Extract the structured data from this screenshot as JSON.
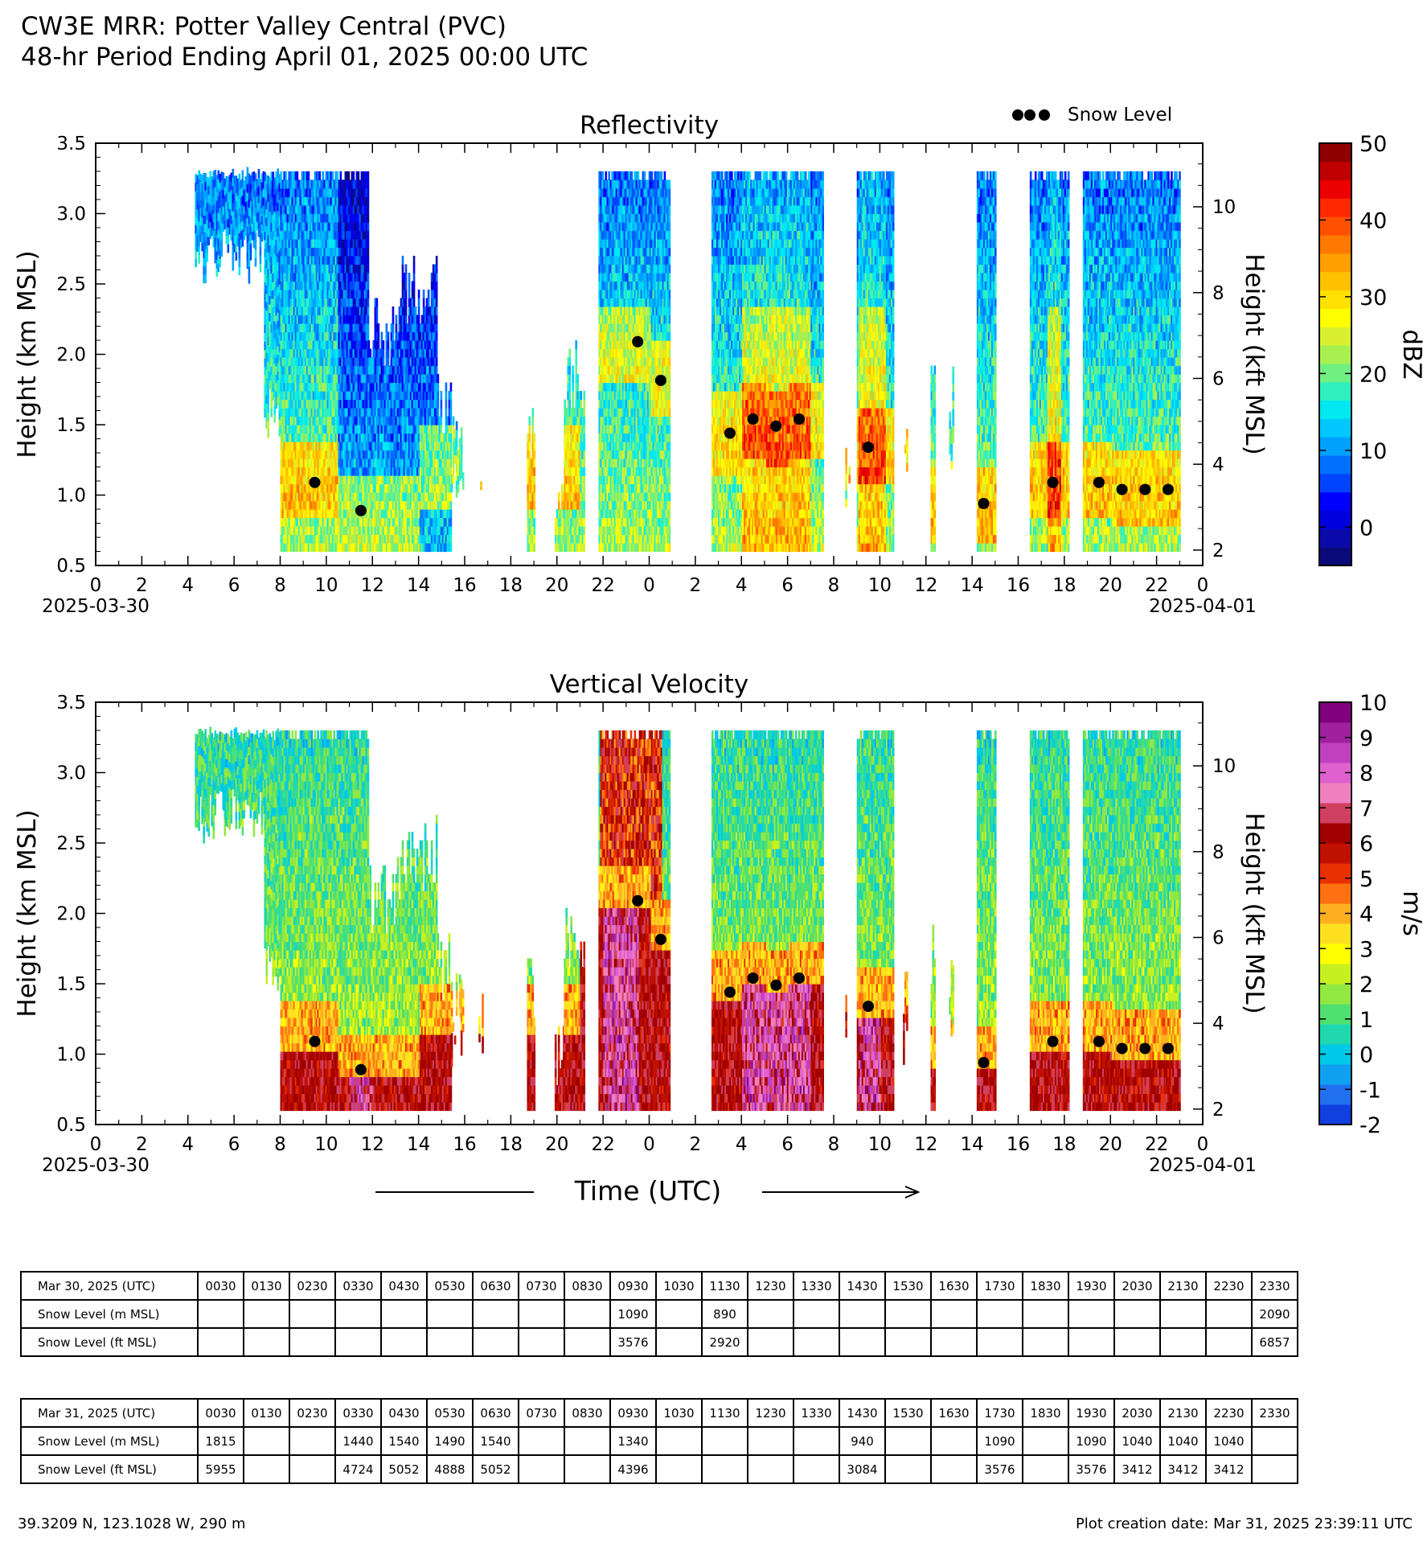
{
  "title": {
    "line1": "CW3E MRR: Potter Valley Central (PVC)",
    "line2": "48-hr Period Ending April 01, 2025 00:00 UTC"
  },
  "legend_label": "Snow Level",
  "x_axis": {
    "label": "Time (UTC)",
    "ticks": [
      "0",
      "2",
      "4",
      "6",
      "8",
      "10",
      "12",
      "14",
      "16",
      "18",
      "20",
      "22",
      "0",
      "2",
      "4",
      "6",
      "8",
      "10",
      "12",
      "14",
      "16",
      "18",
      "20",
      "22",
      "0"
    ],
    "start_date": "2025-03-30",
    "end_date": "2025-04-01"
  },
  "chart_data": [
    {
      "type": "heatmap",
      "title": "Reflectivity",
      "ylabel": "Height (km MSL)",
      "y2label": "Height (kft MSL)",
      "ylim": [
        0.5,
        3.5
      ],
      "yticks": [
        "0.5",
        "1.0",
        "1.5",
        "2.0",
        "2.5",
        "3.0",
        "3.5"
      ],
      "y2ticks": [
        "2",
        "4",
        "6",
        "8",
        "10"
      ],
      "xlim_hours": [
        0,
        48
      ],
      "colorbar": {
        "label": "dBZ",
        "min": -5,
        "max": 50,
        "ticks": [
          "0",
          "10",
          "20",
          "30",
          "40",
          "50"
        ],
        "tick_values": [
          0,
          10,
          20,
          30,
          40,
          50
        ],
        "colors": [
          "#0a0a7a",
          "#0a0aaa",
          "#0000dd",
          "#0000ff",
          "#0044ff",
          "#0070ff",
          "#00a0ff",
          "#00c8ff",
          "#00e8f0",
          "#30f0c0",
          "#70f080",
          "#a8f050",
          "#d8f030",
          "#ffff00",
          "#ffe000",
          "#ffc000",
          "#ffa000",
          "#ff7800",
          "#ff5000",
          "#ff2800",
          "#ee0000",
          "#c00000",
          "#900000"
        ]
      },
      "snow_level": [
        {
          "hour": 9.5,
          "km": 1.09
        },
        {
          "hour": 11.5,
          "km": 0.89
        },
        {
          "hour": 23.5,
          "km": 2.09
        },
        {
          "hour": 24.5,
          "km": 1.815
        },
        {
          "hour": 27.5,
          "km": 1.44
        },
        {
          "hour": 28.5,
          "km": 1.54
        },
        {
          "hour": 29.5,
          "km": 1.49
        },
        {
          "hour": 30.5,
          "km": 1.54
        },
        {
          "hour": 33.5,
          "km": 1.34
        },
        {
          "hour": 38.5,
          "km": 0.94
        },
        {
          "hour": 41.5,
          "km": 1.09
        },
        {
          "hour": 43.5,
          "km": 1.09
        },
        {
          "hour": 44.5,
          "km": 1.04
        },
        {
          "hour": 45.5,
          "km": 1.04
        },
        {
          "hour": 46.5,
          "km": 1.04
        }
      ]
    },
    {
      "type": "heatmap",
      "title": "Vertical Velocity",
      "ylabel": "Height (km MSL)",
      "y2label": "Height (kft MSL)",
      "ylim": [
        0.5,
        3.5
      ],
      "yticks": [
        "0.5",
        "1.0",
        "1.5",
        "2.0",
        "2.5",
        "3.0",
        "3.5"
      ],
      "y2ticks": [
        "2",
        "4",
        "6",
        "8",
        "10"
      ],
      "xlim_hours": [
        0,
        48
      ],
      "colorbar": {
        "label": "m/s",
        "min": -2,
        "max": 10,
        "ticks": [
          "-2",
          "-1",
          "0",
          "1",
          "2",
          "3",
          "4",
          "5",
          "6",
          "7",
          "8",
          "9",
          "10"
        ],
        "tick_values": [
          -2,
          -1,
          0,
          1,
          2,
          3,
          4,
          5,
          6,
          7,
          8,
          9,
          10
        ],
        "colors": [
          "#1040e0",
          "#2070f0",
          "#10a0f0",
          "#00c8e8",
          "#20d8b0",
          "#50e070",
          "#90e840",
          "#c8f020",
          "#ffff00",
          "#ffe020",
          "#ffb020",
          "#ff7010",
          "#e83000",
          "#c01000",
          "#a00000",
          "#d04060",
          "#f080c0",
          "#e060d0",
          "#c040c0",
          "#a020a0",
          "#800080"
        ]
      },
      "snow_level": [
        {
          "hour": 9.5,
          "km": 1.09
        },
        {
          "hour": 11.5,
          "km": 0.89
        },
        {
          "hour": 23.5,
          "km": 2.09
        },
        {
          "hour": 24.5,
          "km": 1.815
        },
        {
          "hour": 27.5,
          "km": 1.44
        },
        {
          "hour": 28.5,
          "km": 1.54
        },
        {
          "hour": 29.5,
          "km": 1.49
        },
        {
          "hour": 30.5,
          "km": 1.54
        },
        {
          "hour": 33.5,
          "km": 1.34
        },
        {
          "hour": 38.5,
          "km": 0.94
        },
        {
          "hour": 41.5,
          "km": 1.09
        },
        {
          "hour": 43.5,
          "km": 1.09
        },
        {
          "hour": 44.5,
          "km": 1.04
        },
        {
          "hour": 45.5,
          "km": 1.04
        },
        {
          "hour": 46.5,
          "km": 1.04
        }
      ]
    }
  ],
  "tables": [
    {
      "header": "Mar 30, 2025 (UTC)",
      "times": [
        "0030",
        "0130",
        "0230",
        "0330",
        "0430",
        "0530",
        "0630",
        "0730",
        "0830",
        "0930",
        "1030",
        "1130",
        "1230",
        "1330",
        "1430",
        "1530",
        "1630",
        "1730",
        "1830",
        "1930",
        "2030",
        "2130",
        "2230",
        "2330"
      ],
      "rows": [
        {
          "label": "Snow Level (m MSL)",
          "values": [
            "",
            "",
            "",
            "",
            "",
            "",
            "",
            "",
            "",
            "1090",
            "",
            "890",
            "",
            "",
            "",
            "",
            "",
            "",
            "",
            "",
            "",
            "",
            "",
            "2090"
          ]
        },
        {
          "label": "Snow Level (ft MSL)",
          "values": [
            "",
            "",
            "",
            "",
            "",
            "",
            "",
            "",
            "",
            "3576",
            "",
            "2920",
            "",
            "",
            "",
            "",
            "",
            "",
            "",
            "",
            "",
            "",
            "",
            "6857"
          ]
        }
      ]
    },
    {
      "header": "Mar 31, 2025 (UTC)",
      "times": [
        "0030",
        "0130",
        "0230",
        "0330",
        "0430",
        "0530",
        "0630",
        "0730",
        "0830",
        "0930",
        "1030",
        "1130",
        "1230",
        "1330",
        "1430",
        "1530",
        "1630",
        "1730",
        "1830",
        "1930",
        "2030",
        "2130",
        "2230",
        "2330"
      ],
      "rows": [
        {
          "label": "Snow Level (m MSL)",
          "values": [
            "1815",
            "",
            "",
            "1440",
            "1540",
            "1490",
            "1540",
            "",
            "",
            "1340",
            "",
            "",
            "",
            "",
            "940",
            "",
            "",
            "1090",
            "",
            "1090",
            "1040",
            "1040",
            "1040",
            ""
          ]
        },
        {
          "label": "Snow Level (ft MSL)",
          "values": [
            "5955",
            "",
            "",
            "4724",
            "5052",
            "4888",
            "5052",
            "",
            "",
            "4396",
            "",
            "",
            "",
            "",
            "3084",
            "",
            "",
            "3576",
            "",
            "3576",
            "3412",
            "3412",
            "3412",
            ""
          ]
        }
      ]
    }
  ],
  "footer": {
    "location": "39.3209 N, 123.1028 W, 290 m",
    "creation": "Plot creation date: Mar 31, 2025 23:39:11 UTC"
  }
}
